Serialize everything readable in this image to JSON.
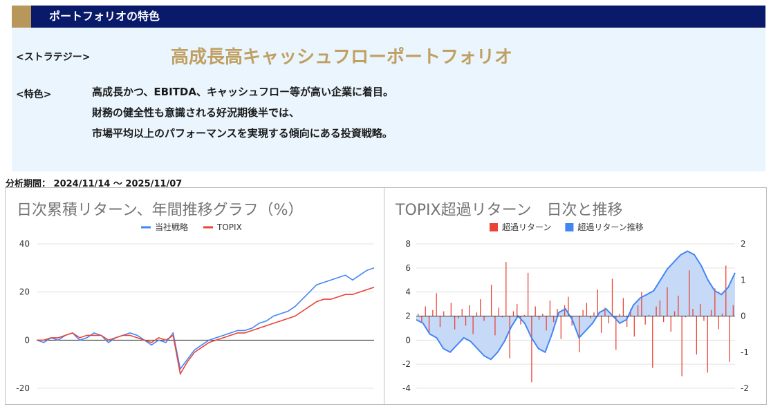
{
  "header": {
    "title": "ポートフォリオの特色"
  },
  "strategy": {
    "label": "<ストラテジー>",
    "name": "高成長高キャッシュフローポートフォリオ"
  },
  "features": {
    "label": "<特色>",
    "lines": [
      "高成長かつ、EBITDA、キャッシュフロー等が高い企業に着目。",
      "財務の健全性も意識される好況期後半では、",
      "市場平均以上のパフォーマンスを実現する傾向にある投資戦略。"
    ]
  },
  "period": "分析期間： 2024/11/14 〜 2025/11/07",
  "colors": {
    "navy": "#0a1a6b",
    "gold": "#c0a062",
    "blue": "#4285f4",
    "red": "#ea4335",
    "area": "#c6d9f7"
  },
  "chart_data": [
    {
      "type": "line",
      "title": "日次累積リターン、年間推移グラフ（%）",
      "ylim": [
        -20,
        40
      ],
      "yticks": [
        40,
        20,
        0,
        -20
      ],
      "legend_position": "top",
      "series": [
        {
          "name": "当社戦略",
          "color": "#4285f4",
          "values": [
            0,
            -1,
            1,
            0,
            2,
            3,
            0,
            1,
            3,
            2,
            -1,
            1,
            2,
            3,
            2,
            0,
            -2,
            0,
            -1,
            3,
            -12,
            -8,
            -4,
            -2,
            0,
            1,
            2,
            3,
            4,
            4,
            5,
            7,
            8,
            10,
            11,
            12,
            14,
            17,
            20,
            23,
            24,
            25,
            26,
            27,
            25,
            27,
            29,
            30
          ]
        },
        {
          "name": "TOPIX",
          "color": "#ea4335",
          "values": [
            0,
            0,
            1,
            1,
            2,
            3,
            1,
            2,
            2,
            2,
            0,
            1,
            2,
            2,
            1,
            0,
            -1,
            1,
            0,
            2,
            -14,
            -9,
            -5,
            -3,
            -1,
            0,
            1,
            2,
            3,
            3,
            4,
            5,
            6,
            7,
            8,
            9,
            10,
            12,
            14,
            16,
            17,
            17,
            18,
            19,
            19,
            20,
            21,
            22
          ]
        }
      ]
    },
    {
      "type": "bar+area",
      "title": "TOPIX超過リターン　日次と推移",
      "ylim_left": [
        -4,
        8
      ],
      "yticks_left": [
        8,
        6,
        4,
        2,
        0,
        -2,
        -4
      ],
      "ylim_right": [
        -2,
        2
      ],
      "yticks_right": [
        2,
        1,
        0,
        -1,
        -2
      ],
      "legend_position": "top",
      "series": [
        {
          "name": "超過リターン",
          "type": "bar",
          "axis": "left",
          "color": "#ea4335",
          "values": [
            2.2,
            1.5,
            2.8,
            0.6,
            2.5,
            3.9,
            1.1,
            2.4,
            2.0,
            3.1,
            0.9,
            1.8,
            2.6,
            1.2,
            2.9,
            0.5,
            2.3,
            3.4,
            1.6,
            2.0,
            4.6,
            0.4,
            2.7,
            1.9,
            6.5,
            -1.5,
            2.4,
            3.0,
            1.3,
            2.1,
            5.6,
            -3.5,
            2.8,
            1.7,
            2.2,
            0.8,
            3.3,
            1.5,
            2.6,
            0.1,
            2.9,
            3.6,
            1.2,
            2.0,
            -1.0,
            2.5,
            3.1,
            1.8,
            2.3,
            4.2,
            0.6,
            2.7,
            1.4,
            5.1,
            -0.8,
            2.2,
            3.5,
            1.1,
            2.6,
            0.3,
            2.9,
            4.0,
            1.3,
            2.1,
            -2.3,
            2.8,
            3.3,
            1.5,
            4.4,
            0.7,
            2.4,
            3.7,
            -3.0,
            1.9,
            5.8,
            2.6,
            -1.2,
            3.0,
            1.6,
            -2.7,
            2.5,
            4.3,
            0.9,
            2.2,
            6.2,
            -1.8,
            2.9
          ]
        },
        {
          "name": "超過リターン推移",
          "type": "area",
          "axis": "right",
          "color": "#4285f4",
          "values": [
            -0.1,
            -0.2,
            -0.5,
            -0.6,
            -0.9,
            -1.0,
            -0.8,
            -0.6,
            -0.7,
            -0.9,
            -1.1,
            -1.2,
            -1.0,
            -0.7,
            -0.3,
            0.0,
            -0.2,
            -0.6,
            -0.9,
            -1.0,
            -0.5,
            0.1,
            0.2,
            -0.1,
            -0.6,
            -0.4,
            -0.2,
            0.1,
            0.2,
            0.0,
            -0.2,
            -0.1,
            0.3,
            0.5,
            0.6,
            0.7,
            1.0,
            1.3,
            1.5,
            1.7,
            1.8,
            1.7,
            1.4,
            1.0,
            0.7,
            0.6,
            0.8,
            1.2
          ]
        }
      ]
    }
  ]
}
